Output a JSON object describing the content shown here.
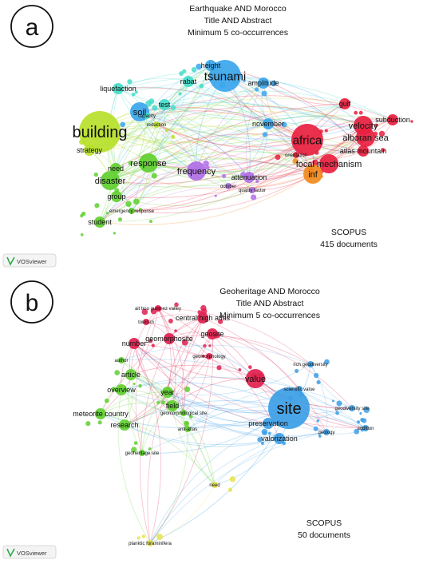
{
  "panels": [
    {
      "id": "a",
      "letter": "a",
      "title_lines": [
        "Earthquake AND Morocco",
        "Title AND Abstract",
        "Minimum 5 co-occurrences"
      ],
      "source": "SCOPUS",
      "documents": "415 documents",
      "software": "VOSviewer",
      "cluster_colors": {
        "green": "#5fcf2f",
        "lime": "#b7e02a",
        "blue": "#39a6ec",
        "cyan": "#44dcc9",
        "red": "#e8203f",
        "orange": "#f08a1c",
        "purple": "#b06ee6"
      },
      "nodes": [
        {
          "label": "building",
          "c": "lime",
          "size": 5
        },
        {
          "label": "tsunami",
          "c": "blue",
          "size": 4
        },
        {
          "label": "africa",
          "c": "red",
          "size": 4
        },
        {
          "label": "soil",
          "c": "blue",
          "size": 3
        },
        {
          "label": "liquefaction",
          "c": "cyan",
          "size": 2
        },
        {
          "label": "test",
          "c": "cyan",
          "size": 2
        },
        {
          "label": "rabat",
          "c": "cyan",
          "size": 2
        },
        {
          "label": "strategy",
          "c": "lime",
          "size": 2
        },
        {
          "label": "response",
          "c": "green",
          "size": 3
        },
        {
          "label": "disaster",
          "c": "green",
          "size": 3
        },
        {
          "label": "frequency",
          "c": "purple",
          "size": 3
        },
        {
          "label": "november",
          "c": "blue",
          "size": 2
        },
        {
          "label": "velocity",
          "c": "red",
          "size": 3
        },
        {
          "label": "gulf",
          "c": "red",
          "size": 2
        },
        {
          "label": "alboran sea",
          "c": "red",
          "size": 3
        },
        {
          "label": "focal mechanism",
          "c": "red",
          "size": 3
        },
        {
          "label": "inf",
          "c": "orange",
          "size": 3
        },
        {
          "label": "subduction",
          "c": "red",
          "size": 2
        },
        {
          "label": "atlas mountain",
          "c": "red",
          "size": 2
        },
        {
          "label": "group",
          "c": "green",
          "size": 2
        },
        {
          "label": "need",
          "c": "green",
          "size": 2
        },
        {
          "label": "student",
          "c": "green",
          "size": 2
        },
        {
          "label": "attenuation",
          "c": "purple",
          "size": 2
        },
        {
          "label": "amplitude",
          "c": "blue",
          "size": 2
        },
        {
          "label": "height",
          "c": "blue",
          "size": 2
        },
        {
          "label": "capacity",
          "c": "cyan",
          "size": 1
        },
        {
          "label": "reduction",
          "c": "lime",
          "size": 1
        },
        {
          "label": "orientation",
          "c": "red",
          "size": 1
        },
        {
          "label": "october",
          "c": "purple",
          "size": 1
        },
        {
          "label": "quality factor",
          "c": "purple",
          "size": 1
        },
        {
          "label": "emergency response",
          "c": "green",
          "size": 1
        }
      ]
    },
    {
      "id": "b",
      "letter": "b",
      "title_lines": [
        "Geoheritage AND Morocco",
        "Title AND Abstract",
        "Minimum 5 co-occurrences"
      ],
      "source": "SCOPUS",
      "documents": "50 documents",
      "software": "VOSviewer",
      "cluster_colors": {
        "red": "#e01f4e",
        "green": "#5fcf2f",
        "blue": "#3c9ee6",
        "yellow": "#e6e24c"
      },
      "nodes": [
        {
          "label": "site",
          "c": "blue",
          "size": 5
        },
        {
          "label": "value",
          "c": "red",
          "size": 3
        },
        {
          "label": "central high atlas",
          "c": "red",
          "size": 2
        },
        {
          "label": "geosite",
          "c": "red",
          "size": 2
        },
        {
          "label": "geomorphosite",
          "c": "red",
          "size": 2
        },
        {
          "label": "ait bou guemez valley",
          "c": "red",
          "size": 1
        },
        {
          "label": "tourism",
          "c": "red",
          "size": 1
        },
        {
          "label": "number",
          "c": "red",
          "size": 2
        },
        {
          "label": "geomorphology",
          "c": "red",
          "size": 1
        },
        {
          "label": "scientific value",
          "c": "blue",
          "size": 1
        },
        {
          "label": "preservation",
          "c": "blue",
          "size": 2
        },
        {
          "label": "valorization",
          "c": "blue",
          "size": 2
        },
        {
          "label": "geology",
          "c": "blue",
          "size": 1
        },
        {
          "label": "geodiversity site",
          "c": "blue",
          "size": 1
        },
        {
          "label": "addition",
          "c": "blue",
          "size": 1
        },
        {
          "label": "rich geodiversity",
          "c": "blue",
          "size": 1
        },
        {
          "label": "article",
          "c": "green",
          "size": 2
        },
        {
          "label": "overview",
          "c": "green",
          "size": 2
        },
        {
          "label": "year",
          "c": "green",
          "size": 2
        },
        {
          "label": "field",
          "c": "green",
          "size": 2
        },
        {
          "label": "research",
          "c": "green",
          "size": 2
        },
        {
          "label": "meteorite country",
          "c": "green",
          "size": 2
        },
        {
          "label": "author",
          "c": "green",
          "size": 1
        },
        {
          "label": "geomorphological site",
          "c": "green",
          "size": 1
        },
        {
          "label": "geoheritage site",
          "c": "green",
          "size": 1
        },
        {
          "label": "anti-atlas",
          "c": "green",
          "size": 1
        },
        {
          "label": "need",
          "c": "yellow",
          "size": 1
        },
        {
          "label": "planktic foraminifera",
          "c": "yellow",
          "size": 1
        }
      ]
    }
  ]
}
